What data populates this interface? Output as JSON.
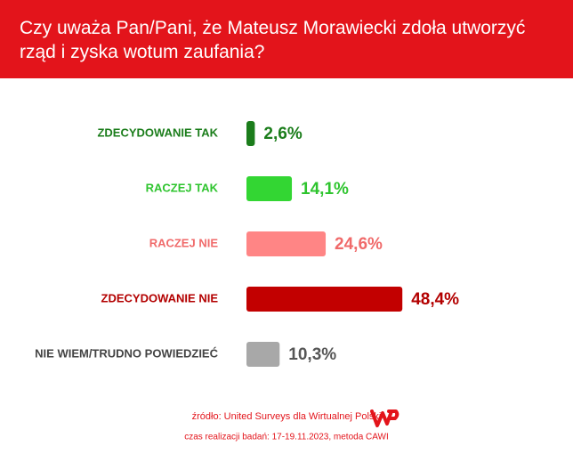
{
  "chart_data": {
    "type": "bar",
    "title": "Czy uważa Pan/Pani, że Mateusz Morawiecki zdoła utworzyć rząd i zyska wotum zaufania?",
    "categories": [
      "ZDECYDOWANIE TAK",
      "RACZEJ TAK",
      "RACZEJ NIE",
      "ZDECYDOWANIE NIE",
      "NIE WIEM/TRUDNO POWIEDZIEĆ"
    ],
    "values": [
      2.6,
      14.1,
      24.6,
      48.4,
      10.3
    ],
    "value_labels": [
      "2,6%",
      "14,1%",
      "24,6%",
      "48,4%",
      "10,3%"
    ],
    "colors": [
      "#1b7d1b",
      "#33d633",
      "#ff8585",
      "#c20000",
      "#a8a8a8"
    ],
    "label_colors": [
      "#1b7d1b",
      "#2ec42e",
      "#f06a6a",
      "#b30000",
      "#444444"
    ],
    "value_label_colors": [
      "#1b7d1b",
      "#2ec42e",
      "#f06a6a",
      "#b30000",
      "#555555"
    ],
    "source": "źródło: United Surveys dla Wirtualnej Polski",
    "note": "czas realizacji badań: 17-19.11.2023, metoda CAWI"
  }
}
